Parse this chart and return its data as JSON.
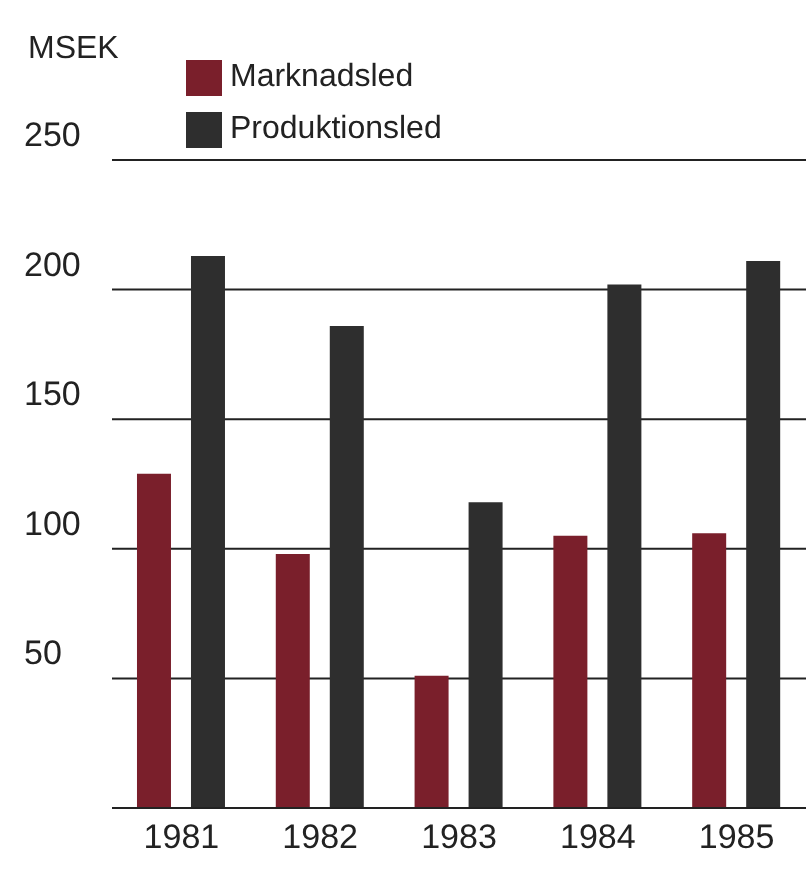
{
  "chart_data": {
    "type": "bar",
    "ylabel": "MSEK",
    "categories": [
      "1981",
      "1982",
      "1983",
      "1984",
      "1985"
    ],
    "series": [
      {
        "name": "Marknadsled",
        "color": "#7a1f2b",
        "values": [
          129,
          98,
          51,
          105,
          106
        ]
      },
      {
        "name": "Produktionsled",
        "color": "#2e2e2e",
        "values": [
          213,
          186,
          118,
          202,
          211
        ]
      }
    ],
    "ylim": [
      0,
      250
    ],
    "yticks": [
      50,
      100,
      150,
      200,
      250
    ],
    "grid": "y",
    "legend": "top left"
  }
}
